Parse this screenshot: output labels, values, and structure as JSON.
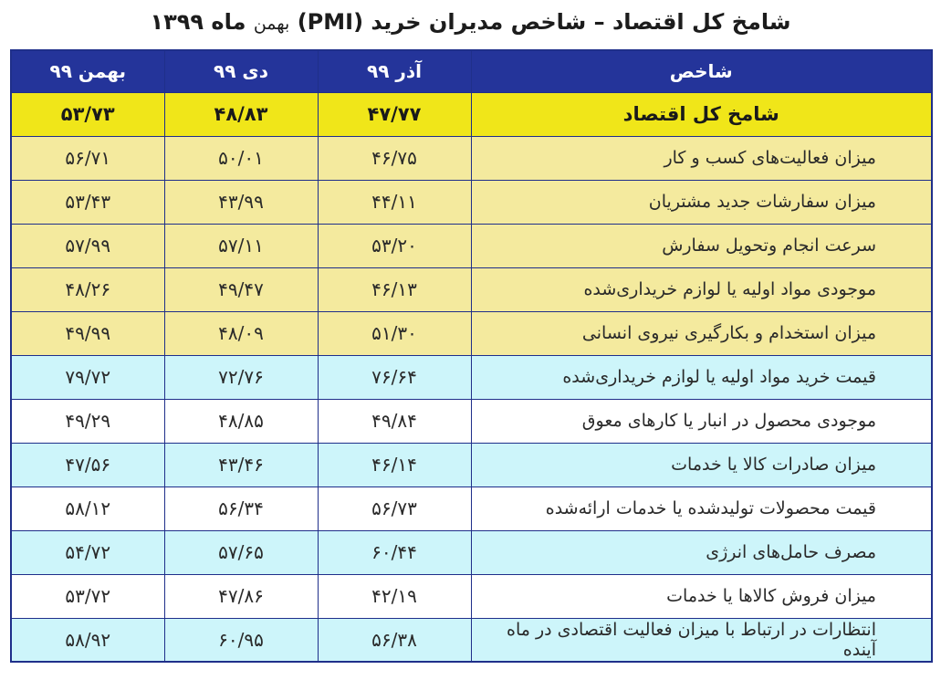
{
  "title": {
    "main": "شامخ کل اقتصاد – شاخص مدیران خرید (PMI)",
    "suffix_normal": "بهمن",
    "suffix_bold": "ماه ۱۳۹۹"
  },
  "table": {
    "headers": [
      "شاخص",
      "آذر ۹۹",
      "دی ۹۹",
      "بهمن ۹۹"
    ],
    "main_row": {
      "label": "شامخ کل اقتصاد",
      "values": [
        "۴۷/۷۷",
        "۴۸/۸۳",
        "۵۳/۷۳"
      ]
    },
    "rows": [
      {
        "label": "میزان فعالیت‌های کسب و کار",
        "values": [
          "۴۶/۷۵",
          "۵۰/۰۱",
          "۵۶/۷۱"
        ],
        "style": "yellow"
      },
      {
        "label": "میزان سفارشات جدید مشتریان",
        "values": [
          "۴۴/۱۱",
          "۴۳/۹۹",
          "۵۳/۴۳"
        ],
        "style": "yellow"
      },
      {
        "label": "سرعت انجام وتحویل سفارش",
        "values": [
          "۵۳/۲۰",
          "۵۷/۱۱",
          "۵۷/۹۹"
        ],
        "style": "yellow"
      },
      {
        "label": "موجودی مواد اولیه یا لوازم خریداری‌شده",
        "values": [
          "۴۶/۱۳",
          "۴۹/۴۷",
          "۴۸/۲۶"
        ],
        "style": "yellow"
      },
      {
        "label": "میزان استخدام و بکارگیری نیروی انسانی",
        "values": [
          "۵۱/۳۰",
          "۴۸/۰۹",
          "۴۹/۹۹"
        ],
        "style": "yellow"
      },
      {
        "label": "قیمت خرید مواد اولیه یا لوازم خریداری‌شده",
        "values": [
          "۷۶/۶۴",
          "۷۲/۷۶",
          "۷۹/۷۲"
        ],
        "style": "blue"
      },
      {
        "label": "موجودی محصول در انبار یا کارهای معوق",
        "values": [
          "۴۹/۸۴",
          "۴۸/۸۵",
          "۴۹/۲۹"
        ],
        "style": "white"
      },
      {
        "label": "میزان صادرات کالا یا خدمات",
        "values": [
          "۴۶/۱۴",
          "۴۳/۴۶",
          "۴۷/۵۶"
        ],
        "style": "blue"
      },
      {
        "label": "قیمت محصولات تولیدشده یا خدمات ارائه‌شده",
        "values": [
          "۵۶/۷۳",
          "۵۶/۳۴",
          "۵۸/۱۲"
        ],
        "style": "white"
      },
      {
        "label": "مصرف حامل‌های انرژی",
        "values": [
          "۶۰/۴۴",
          "۵۷/۶۵",
          "۵۴/۷۲"
        ],
        "style": "blue"
      },
      {
        "label": "میزان فروش کالاها یا خدمات",
        "values": [
          "۴۲/۱۹",
          "۴۷/۸۶",
          "۵۳/۷۲"
        ],
        "style": "white"
      },
      {
        "label": "انتظارات در ارتباط با میزان فعالیت اقتصادی در ماه آینده",
        "values": [
          "۵۶/۳۸",
          "۶۰/۹۵",
          "۵۸/۹۲"
        ],
        "style": "blue"
      }
    ]
  },
  "colors": {
    "header_bg": "#24349a",
    "main_row_bg": "#f0e619",
    "yellow_row_bg": "#f4ea9e",
    "blue_row_bg": "#cdf5fa",
    "white_row_bg": "#ffffff",
    "border": "#1f2f8a"
  }
}
